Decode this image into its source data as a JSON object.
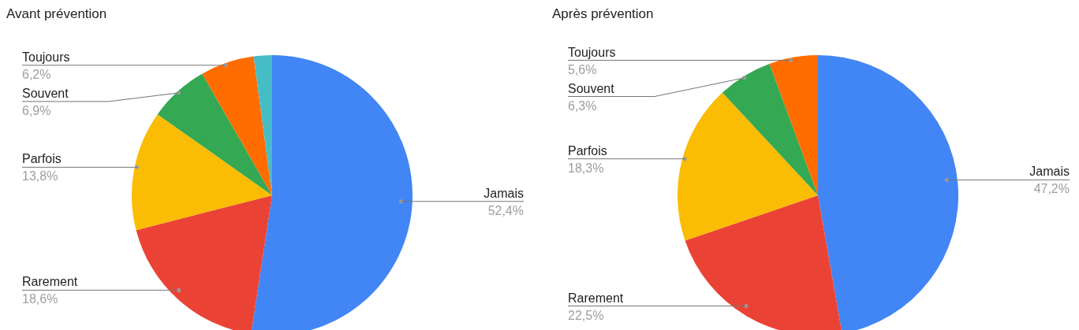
{
  "chart_data": [
    {
      "type": "pie",
      "title": "Avant prévention",
      "categories": [
        "Jamais",
        "Rarement",
        "Parfois",
        "Souvent",
        "Toujours",
        null
      ],
      "values": [
        52.4,
        18.6,
        13.8,
        6.9,
        6.2,
        2.1
      ],
      "colors": [
        "#4285f4",
        "#ea4335",
        "#fbbc04",
        "#34a853",
        "#ff6d01",
        "#46bdc6"
      ],
      "value_labels": [
        "52,4%",
        "18,6%",
        "13,8%",
        "6,9%",
        "6,2%",
        null
      ],
      "legend": false
    },
    {
      "type": "pie",
      "title": "Après prévention",
      "categories": [
        "Jamais",
        "Rarement",
        "Parfois",
        "Souvent",
        "Toujours"
      ],
      "values": [
        47.2,
        22.5,
        18.3,
        6.3,
        5.6
      ],
      "colors": [
        "#4285f4",
        "#ea4335",
        "#fbbc04",
        "#34a853",
        "#ff6d01"
      ],
      "value_labels": [
        "47,2%",
        "22,5%",
        "18,3%",
        "6,3%",
        "5,6%"
      ],
      "legend": false
    }
  ]
}
